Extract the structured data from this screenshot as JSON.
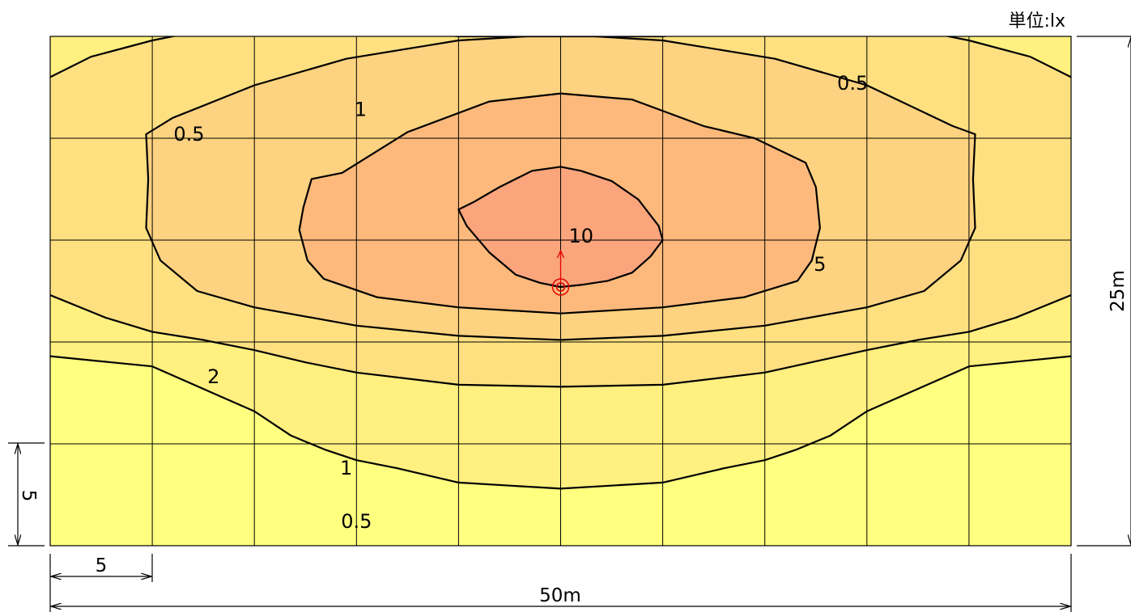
{
  "unit_label": "単位:lx",
  "dimensions": {
    "width_label": "50m",
    "height_label": "25m",
    "grid_x_label": "5",
    "grid_y_label": "5"
  },
  "colors": {
    "band_below_0_5": "#ffff80",
    "band_0_5_to_1": "#fff080",
    "band_1_to_2": "#ffe080",
    "band_2_to_5": "#fdd280",
    "band_5_to_10": "#fcb97b",
    "band_above_10": "#fba57c",
    "luminaire": "#e00000",
    "grid": "#000000"
  },
  "chart_data": {
    "type": "heatmap",
    "subtype": "isolux-contour",
    "unit": "lx",
    "area": {
      "width": 50,
      "depth": 25
    },
    "grid_spacing": {
      "x": 5,
      "y": 5
    },
    "luminaire": {
      "x": 25,
      "y": 12.3,
      "aim": "toward far edge"
    },
    "contour_levels": [
      0.5,
      1,
      2,
      5,
      10
    ],
    "contours": [
      {
        "level": 10,
        "label": "10",
        "closed": true,
        "points": [
          [
            20.0,
            8.5
          ],
          [
            20.4,
            9.3
          ],
          [
            21.5,
            10.6
          ],
          [
            22.8,
            11.7
          ],
          [
            24.0,
            12.1
          ],
          [
            25.0,
            12.3
          ],
          [
            26.0,
            12.2
          ],
          [
            27.3,
            12.0
          ],
          [
            28.5,
            11.6
          ],
          [
            29.4,
            10.8
          ],
          [
            30.0,
            10.0
          ],
          [
            29.8,
            9.3
          ],
          [
            28.8,
            8.0
          ],
          [
            27.5,
            7.1
          ],
          [
            26.0,
            6.6
          ],
          [
            25.0,
            6.4
          ],
          [
            23.6,
            6.6
          ],
          [
            22.0,
            7.4
          ],
          [
            20.8,
            8.1
          ]
        ]
      },
      {
        "level": 5,
        "label": "5",
        "closed": true,
        "points": [
          [
            12.6,
            11.0
          ],
          [
            13.4,
            11.9
          ],
          [
            16.0,
            12.8
          ],
          [
            20.0,
            13.3
          ],
          [
            25.0,
            13.6
          ],
          [
            30.0,
            13.3
          ],
          [
            34.0,
            12.8
          ],
          [
            36.6,
            12.0
          ],
          [
            37.3,
            11.0
          ],
          [
            37.7,
            9.4
          ],
          [
            37.5,
            7.4
          ],
          [
            37.0,
            6.2
          ],
          [
            34.5,
            5.0
          ],
          [
            32.0,
            4.4
          ],
          [
            28.5,
            3.1
          ],
          [
            25.0,
            2.8
          ],
          [
            21.5,
            3.2
          ],
          [
            17.5,
            4.7
          ],
          [
            14.3,
            6.7
          ],
          [
            12.8,
            7.0
          ],
          [
            12.4,
            8.4
          ],
          [
            12.2,
            9.5
          ]
        ]
      },
      {
        "level": 2,
        "label": "2",
        "closed": true,
        "points": [
          [
            4.7,
            4.8
          ],
          [
            4.8,
            7.0
          ],
          [
            4.7,
            9.4
          ],
          [
            5.4,
            11.0
          ],
          [
            7.2,
            12.5
          ],
          [
            10.0,
            13.3
          ],
          [
            15.0,
            14.2
          ],
          [
            20.0,
            14.7
          ],
          [
            25.0,
            14.9
          ],
          [
            30.0,
            14.7
          ],
          [
            35.0,
            14.2
          ],
          [
            40.0,
            13.3
          ],
          [
            42.8,
            12.5
          ],
          [
            44.6,
            11.0
          ],
          [
            45.3,
            9.4
          ],
          [
            45.2,
            7.0
          ],
          [
            45.3,
            4.8
          ],
          [
            44.2,
            4.4
          ],
          [
            40.0,
            2.4
          ],
          [
            35.5,
            1.1
          ],
          [
            30.0,
            0.2
          ],
          [
            25.0,
            -0.1
          ],
          [
            20.0,
            0.2
          ],
          [
            14.5,
            1.1
          ],
          [
            10.0,
            2.4
          ],
          [
            6.0,
            4.0
          ]
        ]
      },
      {
        "level": 1,
        "label": "1",
        "closed": false,
        "points": [
          [
            0.0,
            12.7
          ],
          [
            2.7,
            13.8
          ],
          [
            5.0,
            14.5
          ],
          [
            7.5,
            14.9
          ],
          [
            10.0,
            15.4
          ],
          [
            12.5,
            16.0
          ],
          [
            15.0,
            16.5
          ],
          [
            20.0,
            17.1
          ],
          [
            25.0,
            17.2
          ],
          [
            30.0,
            17.1
          ],
          [
            35.0,
            16.5
          ],
          [
            40.0,
            15.4
          ],
          [
            42.5,
            14.9
          ],
          [
            45.0,
            14.5
          ],
          [
            47.3,
            13.8
          ],
          [
            50.0,
            12.7
          ]
        ]
      },
      {
        "level": 1,
        "label": "1",
        "closed": false,
        "points": [
          [
            0.0,
            2.0
          ],
          [
            2.0,
            1.0
          ],
          [
            5.0,
            0.2
          ],
          [
            7.5,
            -0.3
          ],
          [
            10.0,
            -0.7
          ],
          [
            12.5,
            -1.8
          ],
          [
            15.0,
            -2.3
          ],
          [
            20.0,
            -2.8
          ],
          [
            25.0,
            -2.9
          ],
          [
            30.0,
            -2.8
          ],
          [
            35.0,
            -2.3
          ],
          [
            37.5,
            -1.8
          ],
          [
            40.0,
            -0.7
          ],
          [
            42.5,
            -0.3
          ],
          [
            45.0,
            0.2
          ],
          [
            48.0,
            1.0
          ],
          [
            50.0,
            2.0
          ]
        ]
      },
      {
        "level": 0.5,
        "label": "0.5",
        "closed": false,
        "points": [
          [
            0.0,
            15.7
          ],
          [
            3.0,
            16.0
          ],
          [
            5.0,
            16.2
          ],
          [
            7.5,
            17.3
          ],
          [
            10.0,
            18.4
          ],
          [
            11.8,
            19.6
          ],
          [
            13.5,
            20.3
          ],
          [
            15.0,
            20.8
          ],
          [
            17.0,
            21.2
          ],
          [
            20.0,
            21.9
          ],
          [
            25.0,
            22.2
          ],
          [
            30.0,
            21.9
          ],
          [
            33.0,
            21.2
          ],
          [
            35.0,
            20.8
          ],
          [
            36.5,
            20.3
          ],
          [
            38.2,
            19.6
          ],
          [
            40.0,
            18.4
          ],
          [
            42.5,
            17.3
          ],
          [
            45.0,
            16.2
          ],
          [
            47.0,
            16.0
          ],
          [
            50.0,
            15.7
          ]
        ]
      },
      {
        "level": 0.5,
        "label": "0.5",
        "closed": false,
        "points": [
          [
            0.0,
            -4.6
          ],
          [
            2.0,
            -4.6
          ],
          [
            5.0,
            -3.6
          ],
          [
            7.5,
            -3.2
          ],
          [
            10.0,
            -2.7
          ],
          [
            12.5,
            -1.8
          ],
          [
            14.0,
            -1.1
          ],
          [
            15.0,
            -0.6
          ],
          [
            16.7,
            -0.5
          ],
          [
            17.5,
            -0.3
          ],
          [
            20.0,
            0.0
          ],
          [
            25.0,
            0.0
          ],
          [
            30.0,
            0.0
          ],
          [
            32.5,
            -0.3
          ],
          [
            33.3,
            -0.5
          ],
          [
            35.0,
            -0.6
          ],
          [
            36.0,
            -1.1
          ],
          [
            37.5,
            -1.8
          ],
          [
            40.0,
            -2.7
          ],
          [
            42.5,
            -3.2
          ],
          [
            45.0,
            -3.6
          ],
          [
            48.0,
            -4.6
          ],
          [
            50.0,
            -4.6
          ]
        ]
      }
    ],
    "contour_labels": [
      {
        "text": "0.5",
        "x": 15.0,
        "y": 23.8
      },
      {
        "text": "1",
        "x": 14.5,
        "y": 21.2
      },
      {
        "text": "2",
        "x": 8.0,
        "y": 16.7
      },
      {
        "text": "5",
        "x": 37.7,
        "y": 11.2
      },
      {
        "text": "10",
        "x": 26.0,
        "y": 9.8
      },
      {
        "text": "0.5",
        "x": 6.8,
        "y": 4.8
      },
      {
        "text": "1",
        "x": 15.2,
        "y": 3.6
      },
      {
        "text": "0.5",
        "x": 39.3,
        "y": 2.3
      }
    ]
  }
}
